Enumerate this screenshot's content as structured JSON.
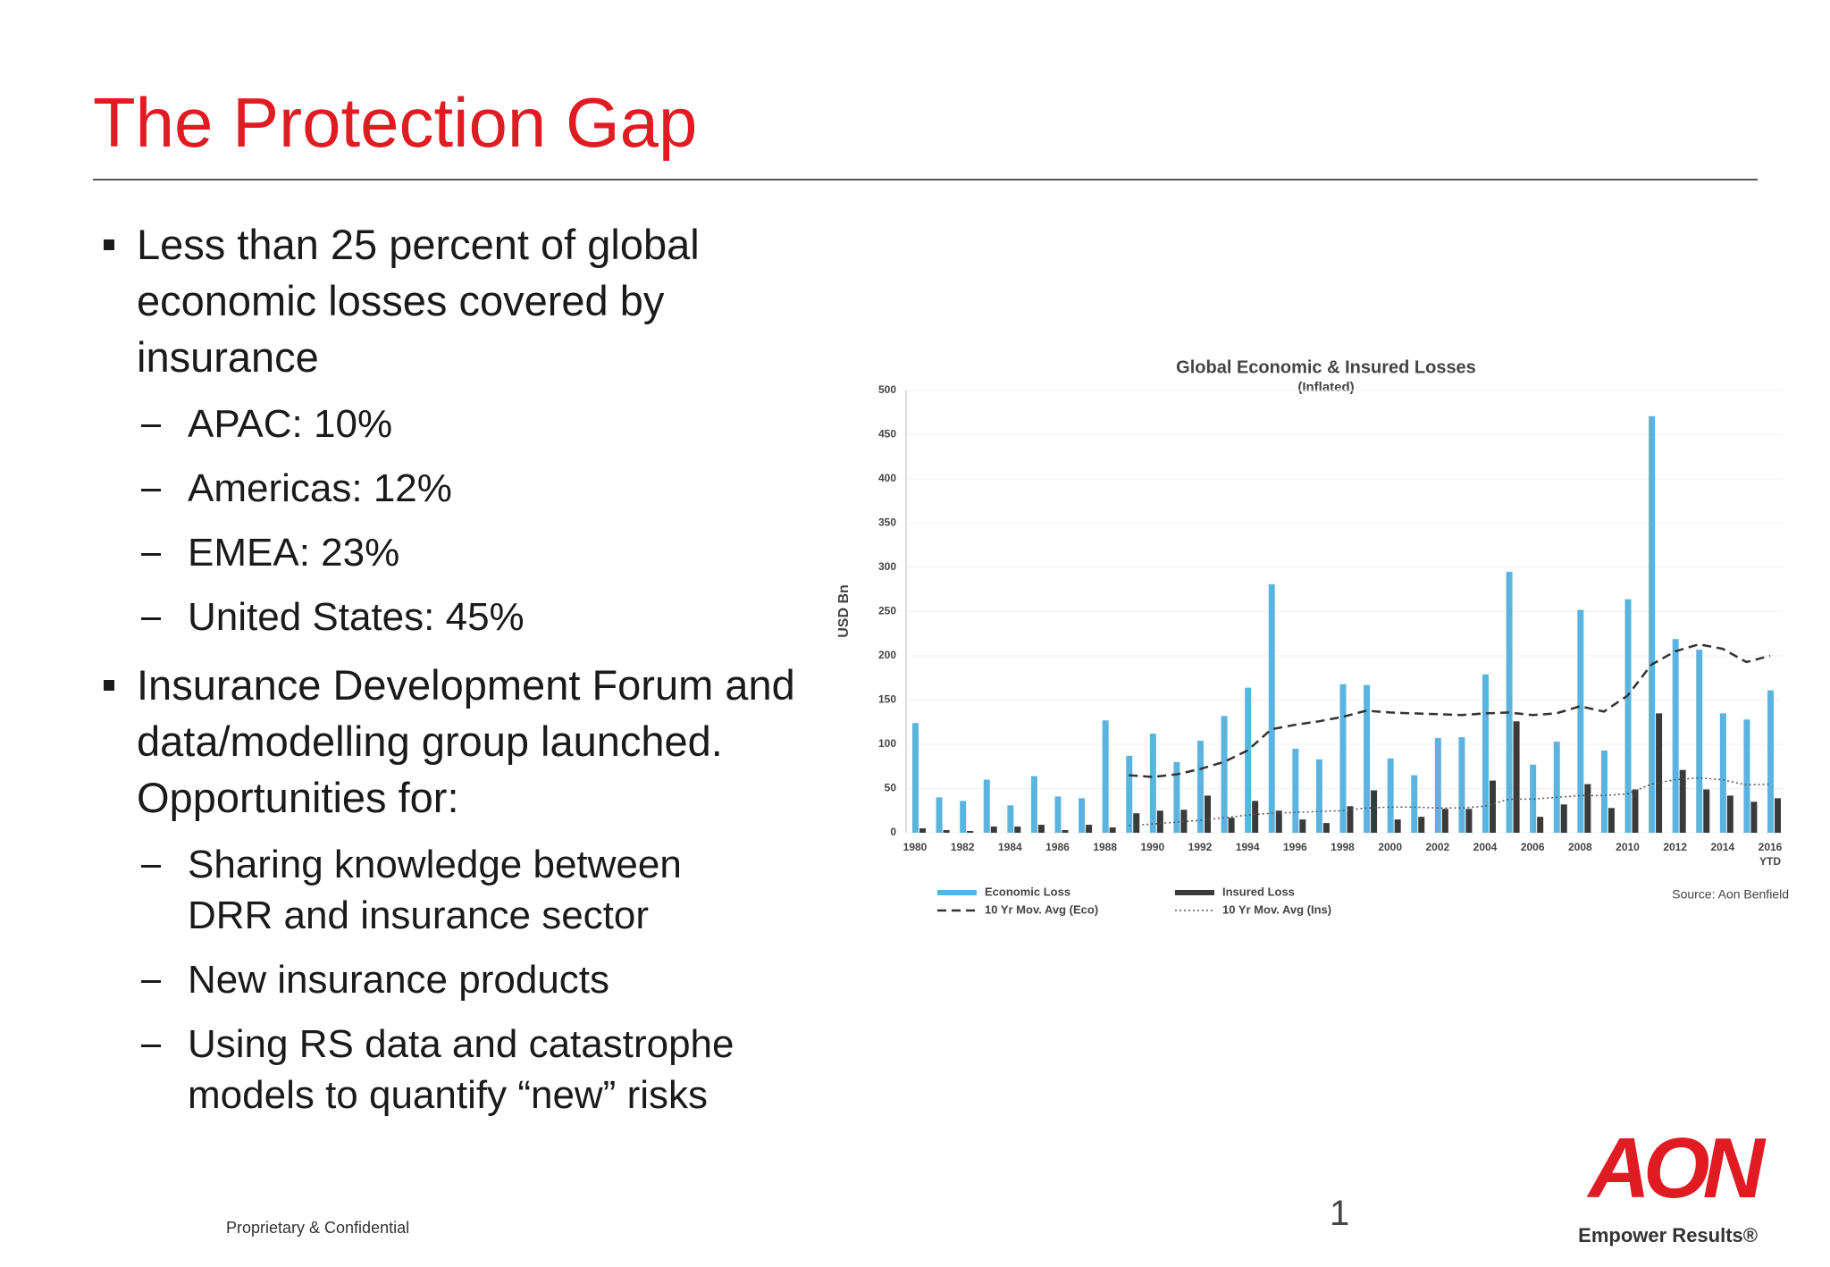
{
  "header": {
    "title": "The Protection Gap"
  },
  "bullets": [
    {
      "text": "Less than 25 percent of global economic losses covered by insurance",
      "subitems": [
        "APAC: 10%",
        "Americas: 12%",
        "EMEA: 23%",
        "United States: 45%"
      ]
    },
    {
      "text": "Insurance Development Forum and data/modelling group launched. Opportunities for:",
      "subitems": [
        "Sharing knowledge between DRR and insurance sector",
        "New insurance products",
        "Using RS data and catastrophe models to quantify “new” risks"
      ]
    }
  ],
  "chart_data": {
    "type": "bar",
    "title": "Global Economic & Insured Losses",
    "subtitle": "(Inflated)",
    "y_label": "USD Bn",
    "source": "Source: Aon Benfield",
    "categories": [
      "1980",
      null,
      "1982",
      null,
      "1984",
      null,
      "1986",
      null,
      "1988",
      null,
      "1990",
      null,
      "1992",
      null,
      "1994",
      null,
      "1996",
      null,
      "1998",
      null,
      "2000",
      null,
      "2002",
      null,
      "2004",
      null,
      "2006",
      null,
      "2008",
      null,
      "2010",
      null,
      "2012",
      null,
      "2014",
      null,
      "2016 YTD"
    ],
    "series": [
      {
        "name": "Economic Loss",
        "type": "bar",
        "color": "#5bb4e0",
        "values": [
          124,
          40,
          36,
          60,
          31,
          64,
          41,
          39,
          127,
          87,
          112,
          80,
          104,
          132,
          164,
          281,
          95,
          83,
          168,
          167,
          84,
          65,
          107,
          108,
          179,
          295,
          77,
          103,
          252,
          93,
          264,
          471,
          219,
          207,
          135,
          128,
          161
        ]
      },
      {
        "name": "Insured Loss",
        "type": "bar",
        "color": "#3a3a3a",
        "values": [
          5,
          3,
          2,
          7,
          7,
          9,
          3,
          9,
          6,
          22,
          25,
          26,
          42,
          17,
          36,
          25,
          15,
          11,
          30,
          48,
          15,
          18,
          27,
          27,
          59,
          126,
          18,
          32,
          55,
          28,
          49,
          135,
          71,
          49,
          42,
          35,
          39
        ]
      },
      {
        "name": "10 Yr Mov. Avg (Eco)",
        "type": "line",
        "style": "dashed",
        "color": "#333333",
        "values": [
          null,
          null,
          null,
          null,
          null,
          null,
          null,
          null,
          null,
          65,
          63,
          66,
          72,
          80,
          93,
          117,
          122,
          126,
          131,
          138,
          136,
          135,
          134,
          133,
          135,
          136,
          133,
          135,
          143,
          137,
          155,
          190,
          205,
          213,
          208,
          193,
          200
        ]
      },
      {
        "name": "10 Yr Mov. Avg (Ins)",
        "type": "line",
        "style": "dotted",
        "color": "#555555",
        "values": [
          null,
          null,
          null,
          null,
          null,
          null,
          null,
          null,
          null,
          8,
          10,
          12,
          14,
          17,
          20,
          22,
          23,
          24,
          25,
          28,
          29,
          29,
          28,
          28,
          30,
          38,
          38,
          40,
          42,
          42,
          44,
          55,
          60,
          62,
          60,
          54,
          55
        ]
      }
    ],
    "ylim": [
      0,
      500
    ],
    "yticks": [
      0,
      50,
      100,
      150,
      200,
      250,
      300,
      350,
      400,
      450,
      500
    ],
    "grid": true
  },
  "footer": {
    "confidential": "Proprietary & Confidential",
    "page_number": "1",
    "logo": "AON",
    "tagline": "Empower Results®"
  }
}
